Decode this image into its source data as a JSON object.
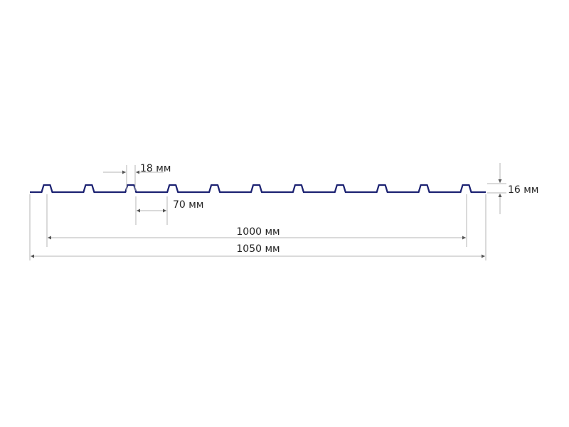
{
  "diagram": {
    "profile_color": "#1c2272",
    "dimension_color": "#b5b5b5",
    "rib_count": 11,
    "labels": {
      "rib_top_width": "18 мм",
      "rib_gap": "70 мм",
      "rib_height": "16 мм",
      "useful_width": "1000 мм",
      "total_width": "1050 мм"
    }
  }
}
